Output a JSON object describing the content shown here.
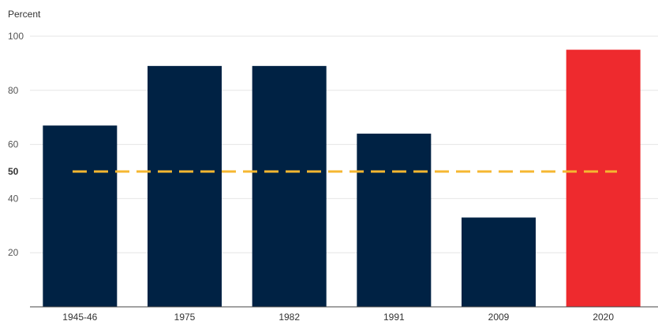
{
  "chart_data": {
    "type": "bar",
    "ylabel": "Percent",
    "categories": [
      "1945-46",
      "1975",
      "1982",
      "1991",
      "2009",
      "2020"
    ],
    "values": [
      67,
      89,
      89,
      64,
      33,
      95
    ],
    "ylim": [
      0,
      100
    ],
    "yticks": [
      20,
      40,
      50,
      60,
      80,
      100
    ],
    "highlight_tick": 50,
    "reference_line": {
      "value": 50,
      "style": "dashed"
    },
    "grid": true,
    "colors": {
      "bar": "#002244",
      "highlight_bar": "#ee2a2e",
      "reference_line": "#f5b731",
      "grid": "#e6e6e6",
      "axis": "#444444"
    },
    "highlight_category": "2020"
  }
}
